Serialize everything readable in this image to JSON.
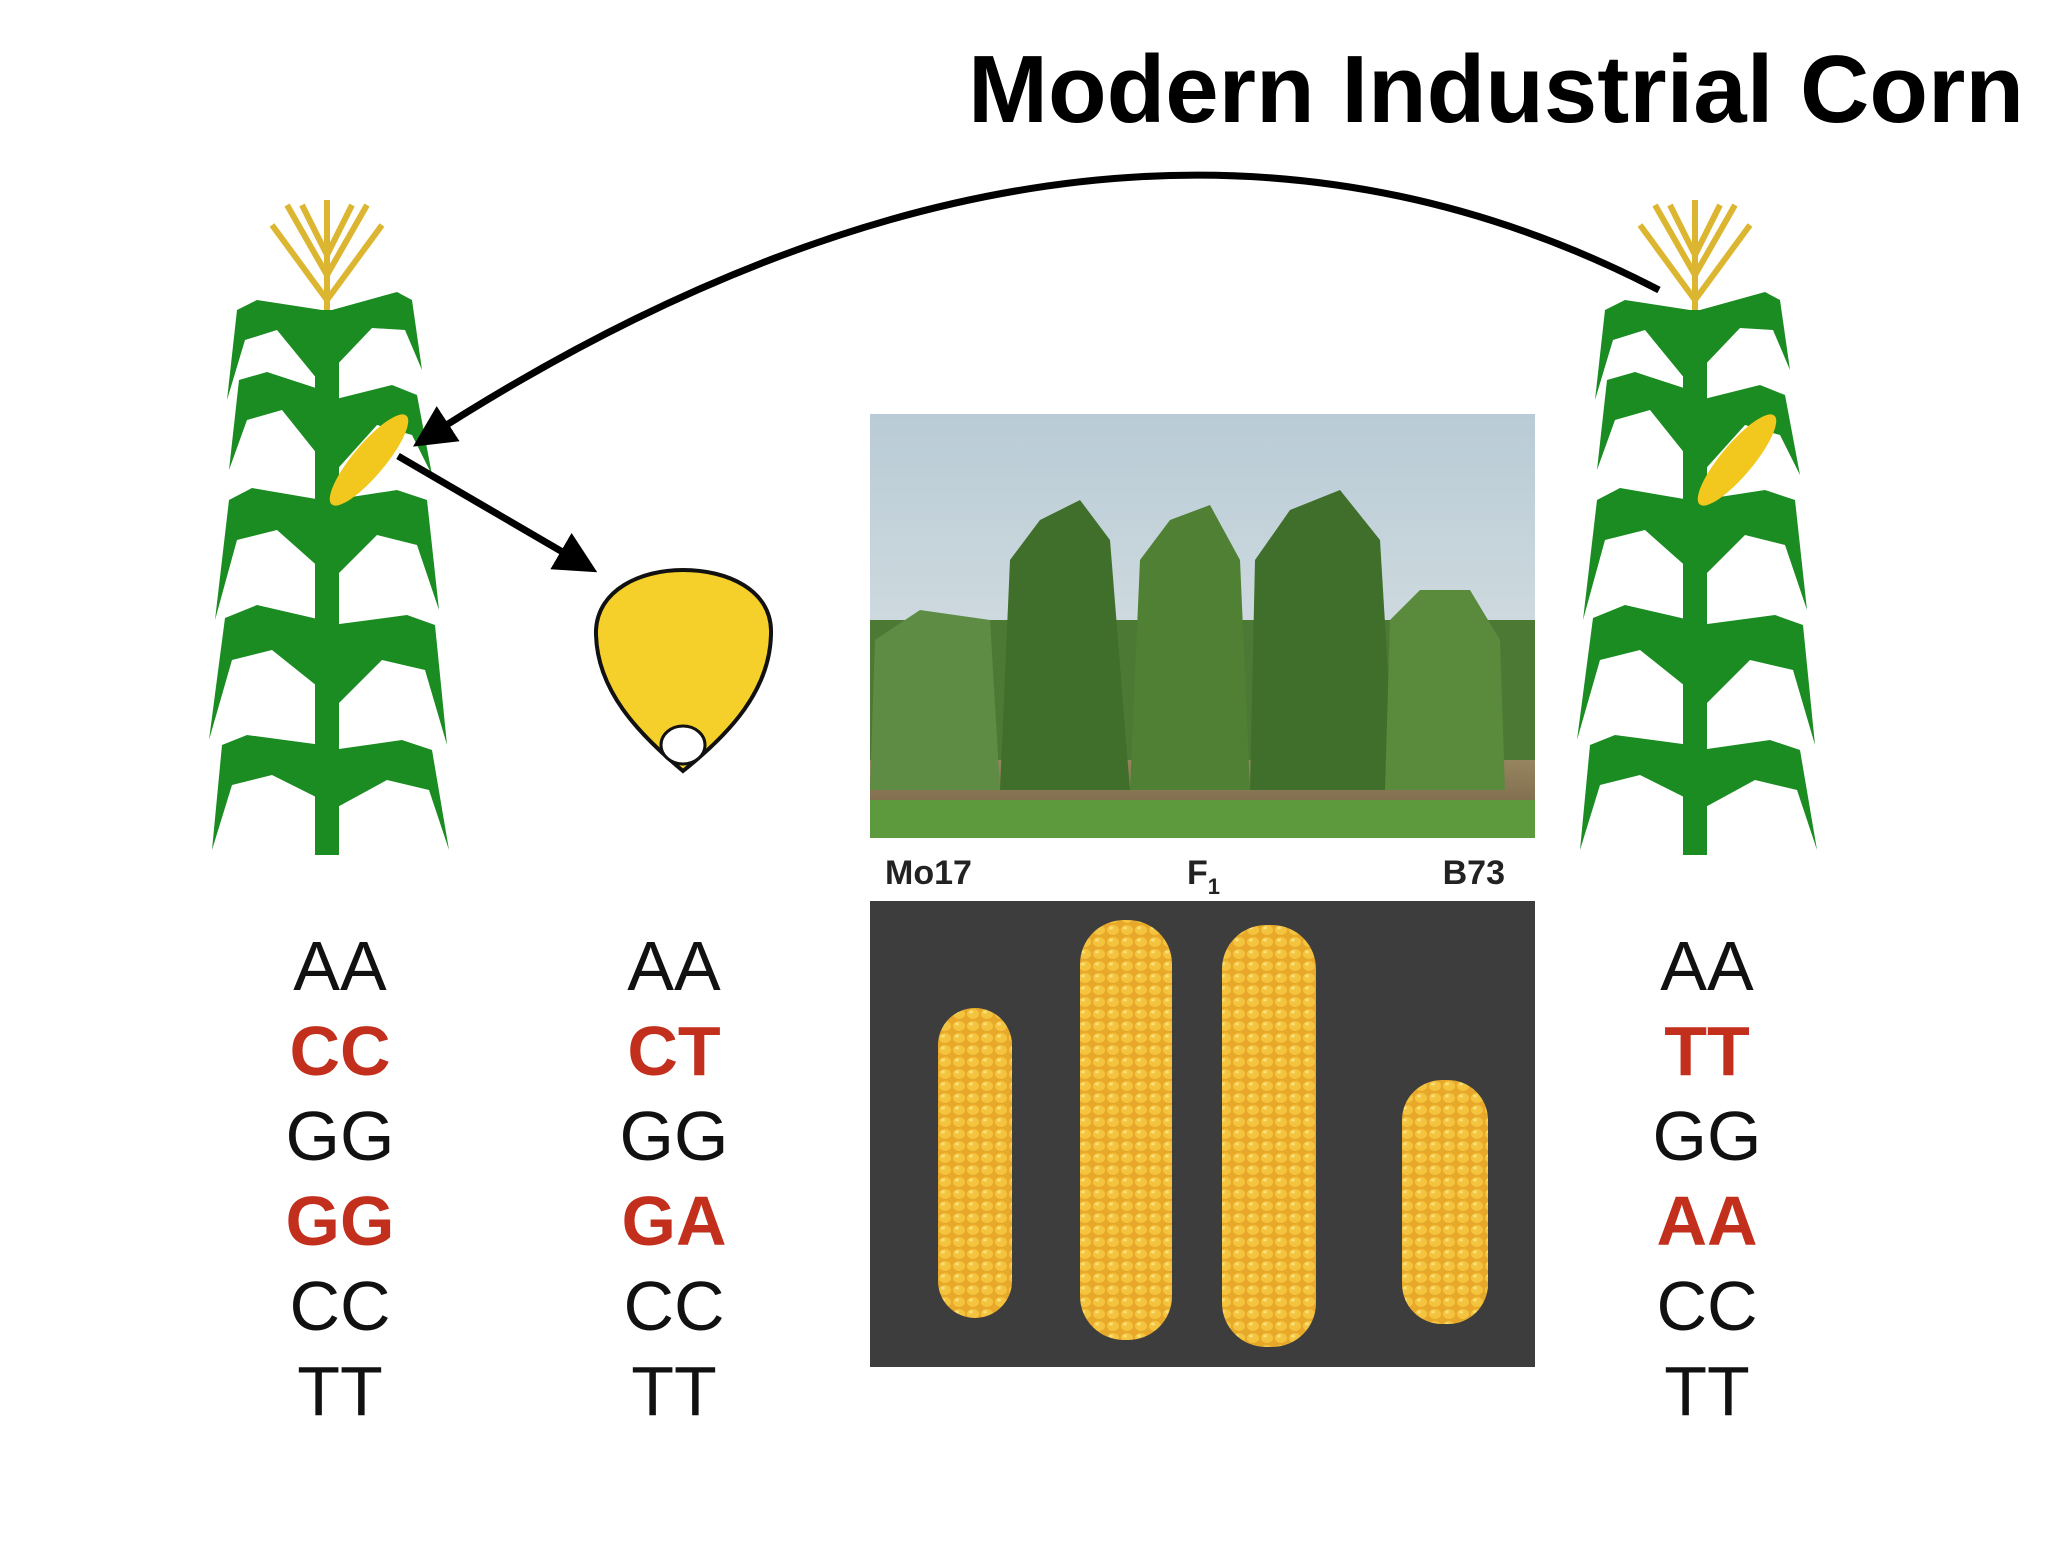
{
  "title": "Modern Industrial Corn",
  "photo_labels": {
    "left": "Mo17",
    "middle": {
      "text": "F",
      "subscript": "1"
    },
    "right": "B73"
  },
  "genotypes": [
    [
      "AA",
      "CC",
      "GG",
      "GG",
      "CC",
      "TT"
    ],
    [
      "AA",
      "CT",
      "GG",
      "GA",
      "CC",
      "TT"
    ],
    [
      "AA",
      "TT",
      "GG",
      "AA",
      "CC",
      "TT"
    ]
  ]
}
